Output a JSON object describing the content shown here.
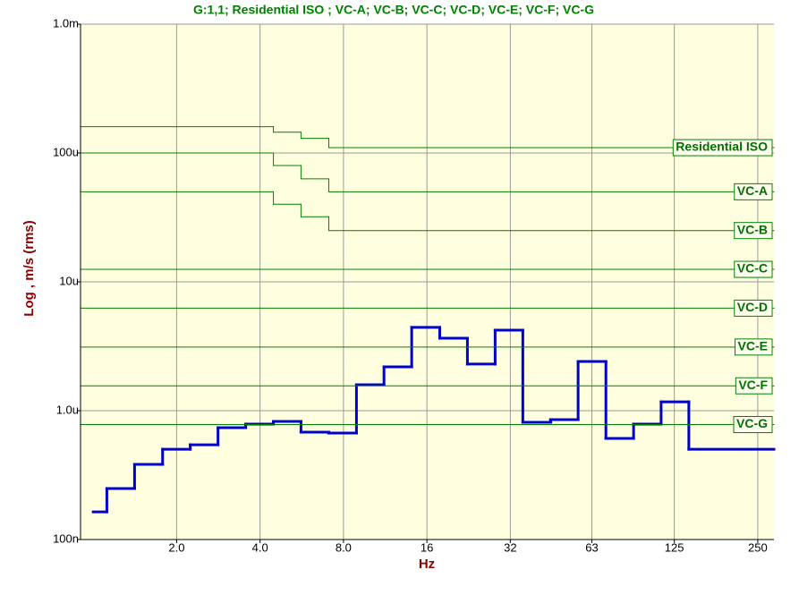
{
  "chart_data": {
    "type": "step",
    "title": "G:1,1; Residential ISO ; VC-A; VC-B; VC-C; VC-D; VC-E; VC-F; VC-G",
    "x_label": "Hz",
    "y_label": "Log , m/s (rms)",
    "log_x": true,
    "log_y": true,
    "grid": true,
    "xlim": [
      0.9,
      286
    ],
    "ylim": [
      1e-07,
      0.001
    ],
    "xticks": [
      {
        "value": 2,
        "label": "2.0"
      },
      {
        "value": 4,
        "label": "4.0"
      },
      {
        "value": 8,
        "label": "8.0"
      },
      16,
      32,
      63,
      125,
      250
    ],
    "yticks": [
      {
        "value": 1e-07,
        "label": "100n"
      },
      {
        "value": 1e-06,
        "label": "1.0u"
      },
      {
        "value": 1e-05,
        "label": "10u"
      },
      {
        "value": 0.0001,
        "label": "100u"
      },
      {
        "value": 0.001,
        "label": "1.0m"
      }
    ],
    "series": [
      {
        "color": "#0000cc",
        "bins": [
          1.0,
          1.12,
          1.41,
          1.78,
          2.24,
          2.82,
          3.55,
          4.47,
          5.62,
          7.08,
          8.91,
          11.2,
          14.1,
          17.8,
          22.4,
          28.2,
          35.5,
          44.7,
          56.2,
          70.8,
          89.1,
          112,
          141,
          286
        ],
        "values": [
          1.64e-07,
          2.49e-07,
          3.83e-07,
          5.02e-07,
          5.44e-07,
          7.38e-07,
          7.87e-07,
          8.26e-07,
          6.81e-07,
          6.7e-07,
          1.59e-06,
          2.19e-06,
          4.43e-06,
          3.65e-06,
          2.3e-06,
          4.22e-06,
          8.13e-07,
          8.53e-07,
          2.41e-06,
          6.09e-07,
          7.87e-07,
          1.17e-06,
          5.02e-07
        ]
      },
      {
        "name": "Residential ISO",
        "color": "#008000",
        "bins": [
          0.9,
          4.47,
          5.62,
          7.08,
          286
        ],
        "values": [
          0.00016,
          0.000145,
          0.00013,
          0.00011
        ]
      },
      {
        "name": "VC-A",
        "color": "#008000",
        "bins": [
          0.9,
          4.47,
          5.62,
          7.08,
          286
        ],
        "values": [
          0.0001,
          8e-05,
          6.3e-05,
          5e-05
        ]
      },
      {
        "name": "VC-B",
        "color": "#008000",
        "bins": [
          0.9,
          4.47,
          5.62,
          7.08,
          286
        ],
        "values": [
          5e-05,
          4e-05,
          3.2e-05,
          2.5e-05
        ]
      },
      {
        "name": "VC-C",
        "color": "#008000",
        "bins": [
          0.9,
          286
        ],
        "values": [
          1.25e-05
        ]
      },
      {
        "name": "VC-D",
        "color": "#008000",
        "bins": [
          0.9,
          286
        ],
        "values": [
          6.25e-06
        ]
      },
      {
        "name": "VC-E",
        "color": "#008000",
        "bins": [
          0.9,
          286
        ],
        "values": [
          3.12e-06
        ]
      },
      {
        "name": "VC-F",
        "color": "#008000",
        "bins": [
          0.9,
          286
        ],
        "values": [
          1.56e-06
        ]
      },
      {
        "name": "VC-G",
        "color": "#008000",
        "bins": [
          0.9,
          286
        ],
        "values": [
          7.8e-07
        ]
      }
    ]
  }
}
